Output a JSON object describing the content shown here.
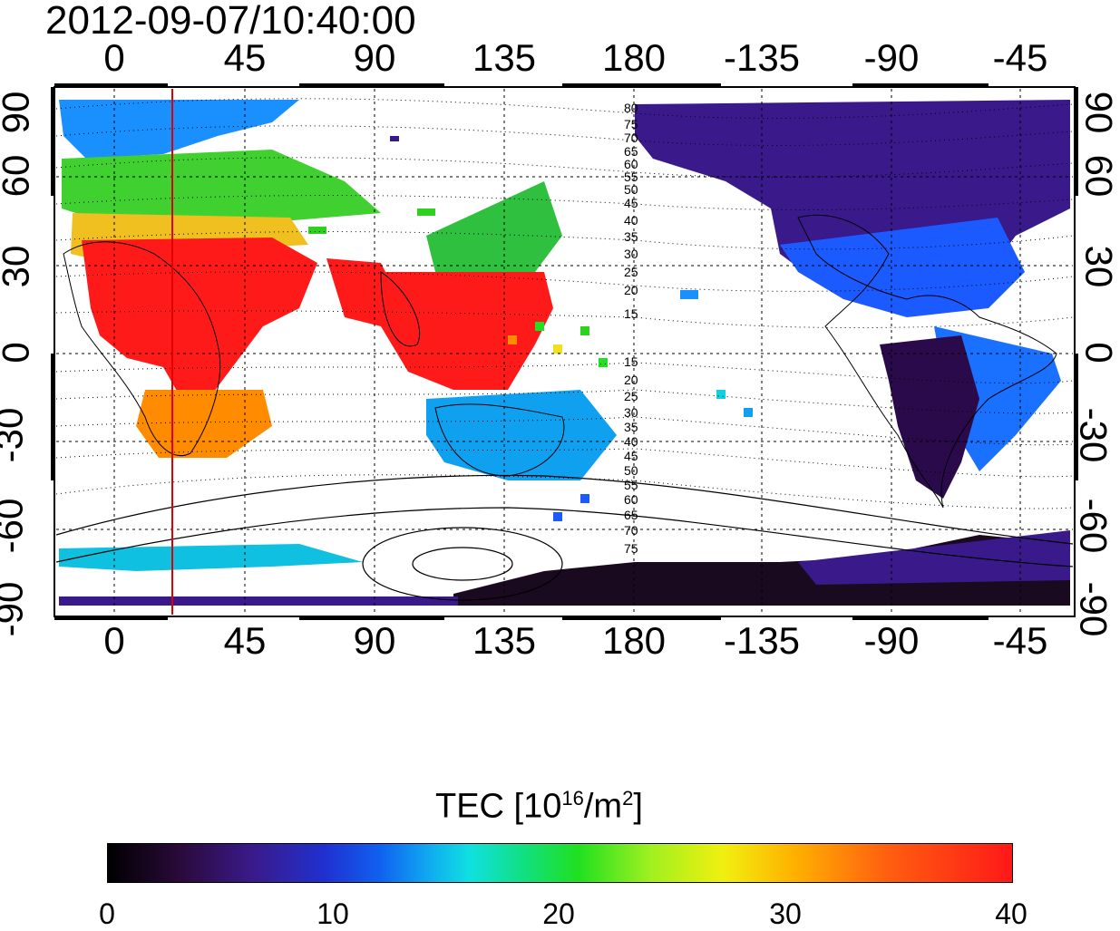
{
  "title": "2012-09-07/10:40:00",
  "map": {
    "top_ticks": [
      "0",
      "45",
      "90",
      "135",
      "180",
      "-135",
      "-90",
      "-45"
    ],
    "bottom_ticks": [
      "0",
      "45",
      "90",
      "135",
      "180",
      "-135",
      "-90",
      "-45"
    ],
    "left_ticks": [
      "90",
      "60",
      "30",
      "0",
      "-30",
      "-60",
      "-90"
    ],
    "right_ticks": [
      "90",
      "60",
      "30",
      "0",
      "-30",
      "-60",
      "-90"
    ],
    "contour_labels_north": [
      "80",
      "75",
      "70",
      "65",
      "60",
      "55",
      "50",
      "45",
      "40",
      "35",
      "30",
      "25",
      "20",
      "15"
    ],
    "contour_labels_south": [
      "15",
      "20",
      "25",
      "30",
      "35",
      "40",
      "45",
      "50",
      "55",
      "60",
      "65",
      "70",
      "75"
    ],
    "terminator_longitude": 20
  },
  "colorbar": {
    "label_prefix": "TEC  [10",
    "label_exp": "16",
    "label_mid": "/m",
    "label_exp2": "2",
    "label_suffix": "]",
    "ticks": [
      "0",
      "10",
      "20",
      "30",
      "40"
    ]
  },
  "colors": {
    "high": "#ff1a1a",
    "orange": "#ff8c00",
    "yellow": "#f0e020",
    "green": "#30d020",
    "cyan": "#10d0e0",
    "blue": "#1a5aff",
    "purple": "#3a1a8a",
    "dark": "#1a0a20"
  }
}
